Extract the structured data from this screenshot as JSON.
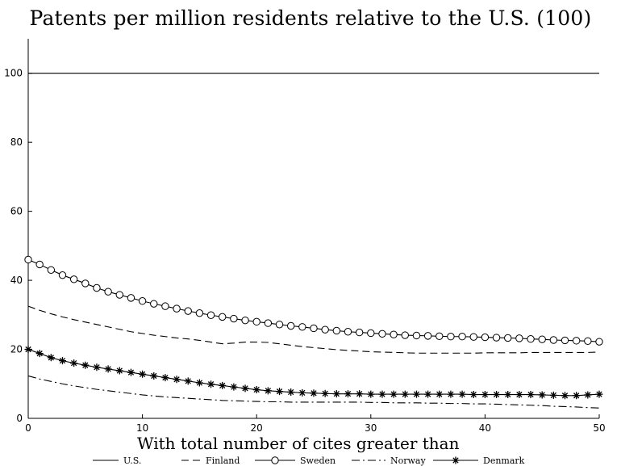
{
  "chart_data": {
    "type": "line",
    "title": "Patents per million residents relative to the U.S. (100)",
    "xlabel": "With total number of cites greater than",
    "ylabel": "",
    "xlim": [
      0,
      50
    ],
    "ylim": [
      0,
      110
    ],
    "xticks": [
      "0",
      "10",
      "20",
      "30",
      "40",
      "50"
    ],
    "yticks": [
      "0",
      "20",
      "40",
      "60",
      "80",
      "100"
    ],
    "grid": false,
    "legend_position": "bottom",
    "x": [
      0,
      1,
      2,
      3,
      4,
      5,
      6,
      7,
      8,
      9,
      10,
      11,
      12,
      13,
      14,
      15,
      16,
      17,
      18,
      19,
      20,
      21,
      22,
      23,
      24,
      25,
      26,
      27,
      28,
      29,
      30,
      31,
      32,
      33,
      34,
      35,
      36,
      37,
      38,
      39,
      40,
      41,
      42,
      43,
      44,
      45,
      46,
      47,
      48,
      49,
      50
    ],
    "series": [
      {
        "name": "U.S.",
        "style": "solid",
        "marker": "none",
        "values": [
          100,
          100,
          100,
          100,
          100,
          100,
          100,
          100,
          100,
          100,
          100,
          100,
          100,
          100,
          100,
          100,
          100,
          100,
          100,
          100,
          100,
          100,
          100,
          100,
          100,
          100,
          100,
          100,
          100,
          100,
          100,
          100,
          100,
          100,
          100,
          100,
          100,
          100,
          100,
          100,
          100,
          100,
          100,
          100,
          100,
          100,
          100,
          100,
          100,
          100,
          100
        ]
      },
      {
        "name": "Finland",
        "style": "dashed",
        "marker": "none",
        "values": [
          32.5,
          31.3,
          30.3,
          29.4,
          28.6,
          27.9,
          27.2,
          26.5,
          25.8,
          25.1,
          24.6,
          24.1,
          23.7,
          23.3,
          23,
          22.6,
          22.1,
          21.6,
          21.8,
          22.1,
          22.1,
          22,
          21.6,
          21.2,
          20.8,
          20.5,
          20.2,
          19.9,
          19.7,
          19.5,
          19.3,
          19.2,
          19.1,
          19,
          18.9,
          18.9,
          18.9,
          18.9,
          18.9,
          18.9,
          19,
          19,
          19,
          19,
          19.1,
          19.1,
          19.1,
          19.1,
          19.1,
          19.1,
          19.2
        ]
      },
      {
        "name": "Sweden",
        "style": "solid",
        "marker": "circle",
        "values": [
          46,
          44.6,
          43,
          41.5,
          40.3,
          39.1,
          37.8,
          36.7,
          35.8,
          34.9,
          34,
          33.2,
          32.5,
          31.8,
          31.1,
          30.5,
          29.9,
          29.4,
          28.9,
          28.4,
          28,
          27.6,
          27.2,
          26.8,
          26.5,
          26.1,
          25.7,
          25.4,
          25.1,
          24.9,
          24.7,
          24.5,
          24.3,
          24.1,
          24,
          23.9,
          23.8,
          23.7,
          23.7,
          23.6,
          23.5,
          23.4,
          23.3,
          23.2,
          23,
          22.9,
          22.7,
          22.6,
          22.5,
          22.4,
          22.2
        ]
      },
      {
        "name": "Norway",
        "style": "dashdot",
        "marker": "none",
        "values": [
          12.3,
          11.4,
          10.7,
          10,
          9.4,
          8.9,
          8.4,
          8,
          7.6,
          7.2,
          6.8,
          6.5,
          6.2,
          6,
          5.8,
          5.6,
          5.4,
          5.2,
          5.1,
          5,
          4.9,
          4.8,
          4.8,
          4.7,
          4.7,
          4.7,
          4.7,
          4.7,
          4.7,
          4.7,
          4.6,
          4.6,
          4.5,
          4.5,
          4.5,
          4.4,
          4.4,
          4.3,
          4.3,
          4.2,
          4.2,
          4.1,
          4,
          3.9,
          3.8,
          3.7,
          3.5,
          3.4,
          3.3,
          3.1,
          3
        ]
      },
      {
        "name": "Denmark",
        "style": "solid",
        "marker": "star",
        "values": [
          20,
          18.8,
          17.6,
          16.7,
          16,
          15.4,
          14.8,
          14.3,
          13.8,
          13.3,
          12.8,
          12.3,
          11.8,
          11.3,
          10.8,
          10.3,
          9.9,
          9.5,
          9.1,
          8.7,
          8.3,
          8,
          7.8,
          7.6,
          7.4,
          7.3,
          7.2,
          7.1,
          7.1,
          7.1,
          7,
          7,
          7,
          7,
          7,
          7,
          7,
          7,
          7,
          6.9,
          6.9,
          6.9,
          6.9,
          6.9,
          6.9,
          6.8,
          6.7,
          6.6,
          6.6,
          6.8,
          7
        ]
      }
    ]
  }
}
